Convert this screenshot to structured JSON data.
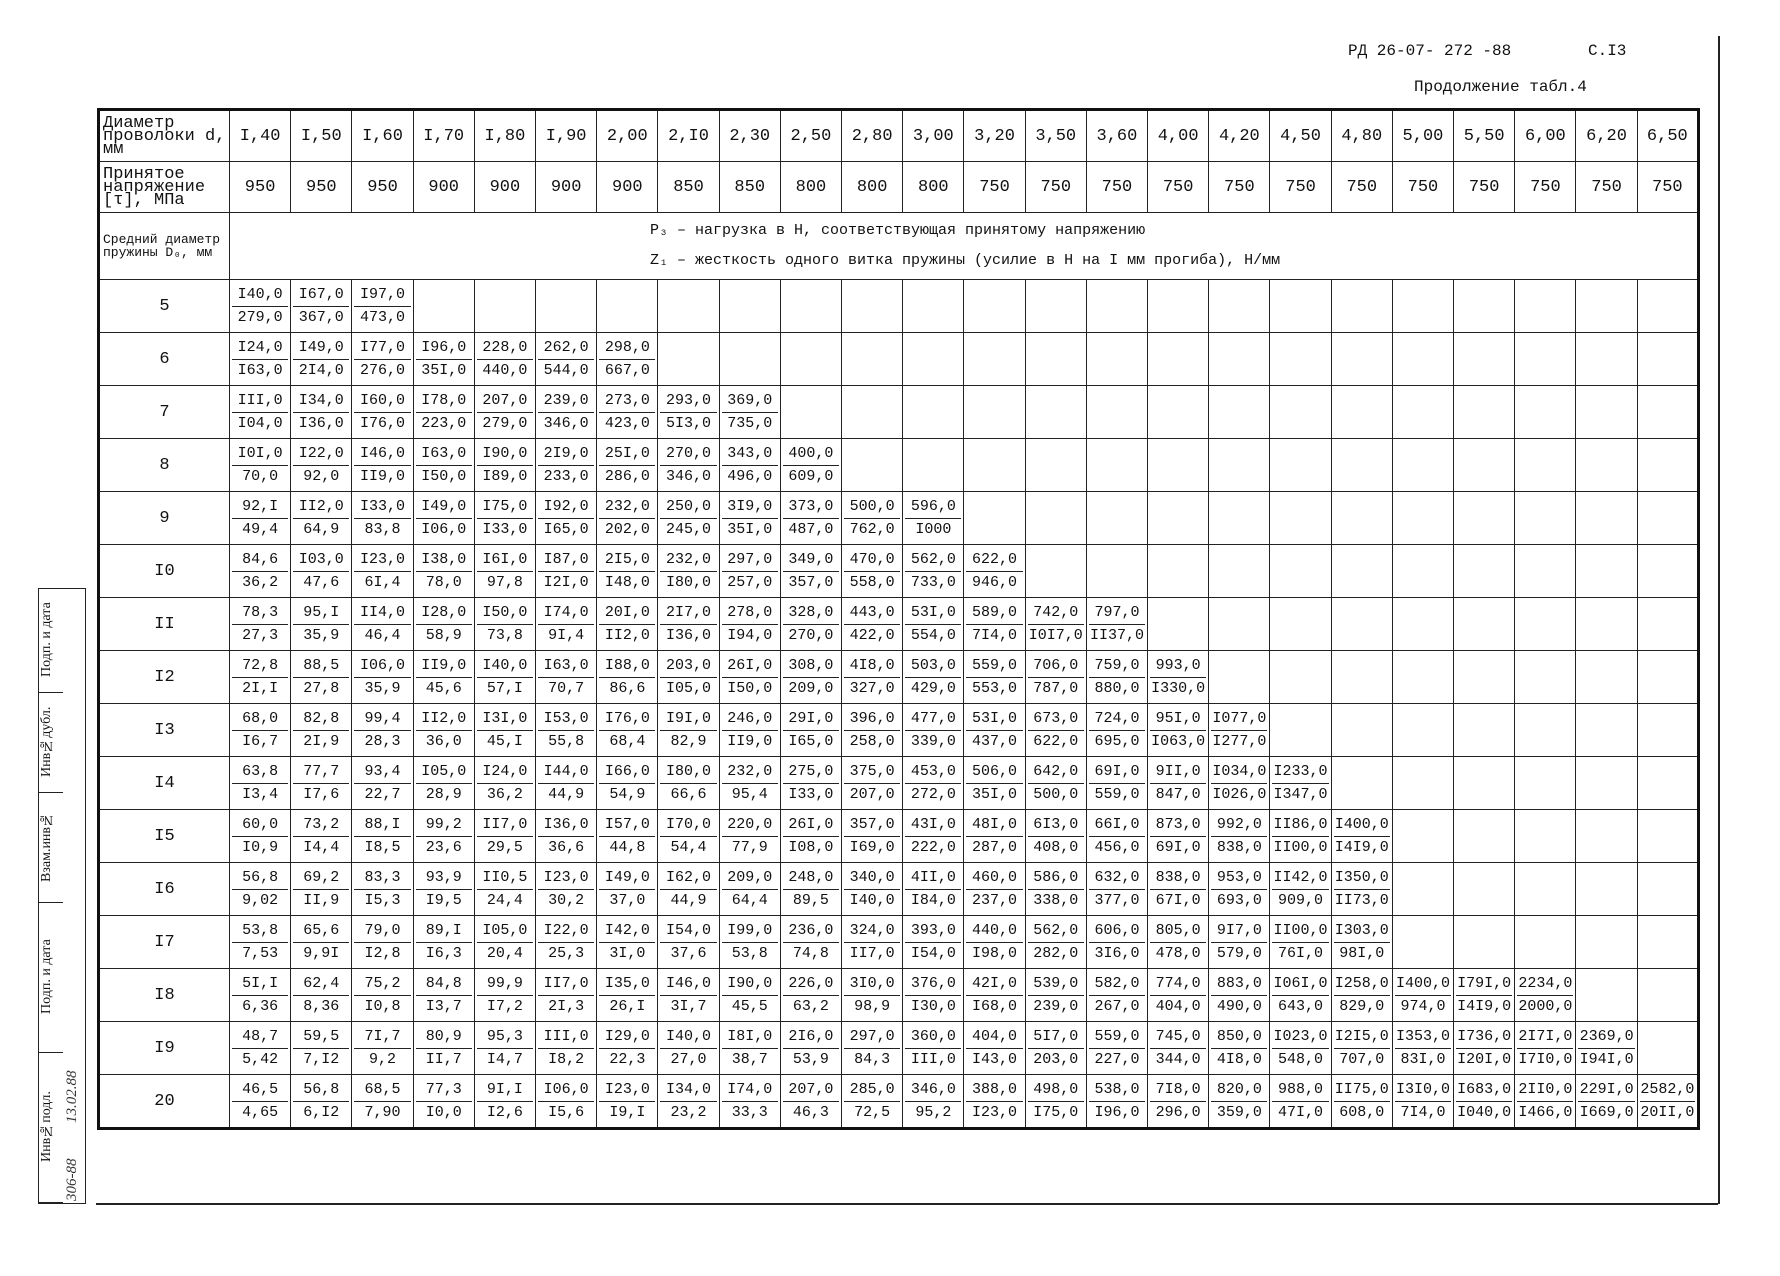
{
  "header": {
    "doc_code": "РД 26-07- 272 -88",
    "page": "С.I3",
    "continuation": "Продолжение табл.4"
  },
  "table": {
    "head_diameter": "Диаметр проволоки d, мм",
    "head_stress": "Принятое напряжение [τ], МПа",
    "head_mean_diameter": "Средний диаметр пружины D₀, мм",
    "legend_p": "P₃ – нагрузка в Н, соответствующая принятому напряжению",
    "legend_z": "Z₁ – жесткость одного витка пружины (усилие в Н на I мм прогиба), Н/мм",
    "diameters": [
      "I,40",
      "I,50",
      "I,60",
      "I,70",
      "I,80",
      "I,90",
      "2,00",
      "2,I0",
      "2,30",
      "2,50",
      "2,80",
      "3,00",
      "3,20",
      "3,50",
      "3,60",
      "4,00",
      "4,20",
      "4,50",
      "4,80",
      "5,00",
      "5,50",
      "6,00",
      "6,20",
      "6,50"
    ],
    "stresses": [
      "950",
      "950",
      "950",
      "900",
      "900",
      "900",
      "900",
      "850",
      "850",
      "800",
      "800",
      "800",
      "750",
      "750",
      "750",
      "750",
      "750",
      "750",
      "750",
      "750",
      "750",
      "750",
      "750",
      "750"
    ],
    "rows": [
      {
        "d0": "5",
        "p": [
          "I40,0",
          "I67,0",
          "I97,0"
        ],
        "z": [
          "279,0",
          "367,0",
          "473,0"
        ]
      },
      {
        "d0": "6",
        "p": [
          "I24,0",
          "I49,0",
          "I77,0",
          "I96,0",
          "228,0",
          "262,0",
          "298,0"
        ],
        "z": [
          "I63,0",
          "2I4,0",
          "276,0",
          "35I,0",
          "440,0",
          "544,0",
          "667,0"
        ]
      },
      {
        "d0": "7",
        "p": [
          "III,0",
          "I34,0",
          "I60,0",
          "I78,0",
          "207,0",
          "239,0",
          "273,0",
          "293,0",
          "369,0"
        ],
        "z": [
          "I04,0",
          "I36,0",
          "I76,0",
          "223,0",
          "279,0",
          "346,0",
          "423,0",
          "5I3,0",
          "735,0"
        ]
      },
      {
        "d0": "8",
        "p": [
          "I0I,0",
          "I22,0",
          "I46,0",
          "I63,0",
          "I90,0",
          "2I9,0",
          "25I,0",
          "270,0",
          "343,0",
          "400,0"
        ],
        "z": [
          "70,0",
          "92,0",
          "II9,0",
          "I50,0",
          "I89,0",
          "233,0",
          "286,0",
          "346,0",
          "496,0",
          "609,0"
        ]
      },
      {
        "d0": "9",
        "p": [
          "92,I",
          "II2,0",
          "I33,0",
          "I49,0",
          "I75,0",
          "I92,0",
          "232,0",
          "250,0",
          "3I9,0",
          "373,0",
          "500,0",
          "596,0"
        ],
        "z": [
          "49,4",
          "64,9",
          "83,8",
          "I06,0",
          "I33,0",
          "I65,0",
          "202,0",
          "245,0",
          "35I,0",
          "487,0",
          "762,0",
          "I000"
        ]
      },
      {
        "d0": "I0",
        "p": [
          "84,6",
          "I03,0",
          "I23,0",
          "I38,0",
          "I6I,0",
          "I87,0",
          "2I5,0",
          "232,0",
          "297,0",
          "349,0",
          "470,0",
          "562,0",
          "622,0"
        ],
        "z": [
          "36,2",
          "47,6",
          "6I,4",
          "78,0",
          "97,8",
          "I2I,0",
          "I48,0",
          "I80,0",
          "257,0",
          "357,0",
          "558,0",
          "733,0",
          "946,0"
        ]
      },
      {
        "d0": "II",
        "p": [
          "78,3",
          "95,I",
          "II4,0",
          "I28,0",
          "I50,0",
          "I74,0",
          "20I,0",
          "2I7,0",
          "278,0",
          "328,0",
          "443,0",
          "53I,0",
          "589,0",
          "742,0",
          "797,0"
        ],
        "z": [
          "27,3",
          "35,9",
          "46,4",
          "58,9",
          "73,8",
          "9I,4",
          "II2,0",
          "I36,0",
          "I94,0",
          "270,0",
          "422,0",
          "554,0",
          "7I4,0",
          "I0I7,0",
          "II37,0"
        ]
      },
      {
        "d0": "I2",
        "p": [
          "72,8",
          "88,5",
          "I06,0",
          "II9,0",
          "I40,0",
          "I63,0",
          "I88,0",
          "203,0",
          "26I,0",
          "308,0",
          "4I8,0",
          "503,0",
          "559,0",
          "706,0",
          "759,0",
          "993,0"
        ],
        "z": [
          "2I,I",
          "27,8",
          "35,9",
          "45,6",
          "57,I",
          "70,7",
          "86,6",
          "I05,0",
          "I50,0",
          "209,0",
          "327,0",
          "429,0",
          "553,0",
          "787,0",
          "880,0",
          "I330,0"
        ]
      },
      {
        "d0": "I3",
        "p": [
          "68,0",
          "82,8",
          "99,4",
          "II2,0",
          "I3I,0",
          "I53,0",
          "I76,0",
          "I9I,0",
          "246,0",
          "29I,0",
          "396,0",
          "477,0",
          "53I,0",
          "673,0",
          "724,0",
          "95I,0",
          "I077,0"
        ],
        "z": [
          "I6,7",
          "2I,9",
          "28,3",
          "36,0",
          "45,I",
          "55,8",
          "68,4",
          "82,9",
          "II9,0",
          "I65,0",
          "258,0",
          "339,0",
          "437,0",
          "622,0",
          "695,0",
          "I063,0",
          "I277,0"
        ]
      },
      {
        "d0": "I4",
        "p": [
          "63,8",
          "77,7",
          "93,4",
          "I05,0",
          "I24,0",
          "I44,0",
          "I66,0",
          "I80,0",
          "232,0",
          "275,0",
          "375,0",
          "453,0",
          "506,0",
          "642,0",
          "69I,0",
          "9II,0",
          "I034,0",
          "I233,0"
        ],
        "z": [
          "I3,4",
          "I7,6",
          "22,7",
          "28,9",
          "36,2",
          "44,9",
          "54,9",
          "66,6",
          "95,4",
          "I33,0",
          "207,0",
          "272,0",
          "35I,0",
          "500,0",
          "559,0",
          "847,0",
          "I026,0",
          "I347,0"
        ]
      },
      {
        "d0": "I5",
        "p": [
          "60,0",
          "73,2",
          "88,I",
          "99,2",
          "II7,0",
          "I36,0",
          "I57,0",
          "I70,0",
          "220,0",
          "26I,0",
          "357,0",
          "43I,0",
          "48I,0",
          "6I3,0",
          "66I,0",
          "873,0",
          "992,0",
          "II86,0",
          "I400,0"
        ],
        "z": [
          "I0,9",
          "I4,4",
          "I8,5",
          "23,6",
          "29,5",
          "36,6",
          "44,8",
          "54,4",
          "77,9",
          "I08,0",
          "I69,0",
          "222,0",
          "287,0",
          "408,0",
          "456,0",
          "69I,0",
          "838,0",
          "II00,0",
          "I4I9,0"
        ]
      },
      {
        "d0": "I6",
        "p": [
          "56,8",
          "69,2",
          "83,3",
          "93,9",
          "II0,5",
          "I23,0",
          "I49,0",
          "I62,0",
          "209,0",
          "248,0",
          "340,0",
          "4II,0",
          "460,0",
          "586,0",
          "632,0",
          "838,0",
          "953,0",
          "II42,0",
          "I350,0"
        ],
        "z": [
          "9,02",
          "II,9",
          "I5,3",
          "I9,5",
          "24,4",
          "30,2",
          "37,0",
          "44,9",
          "64,4",
          "89,5",
          "I40,0",
          "I84,0",
          "237,0",
          "338,0",
          "377,0",
          "67I,0",
          "693,0",
          "909,0",
          "II73,0"
        ]
      },
      {
        "d0": "I7",
        "p": [
          "53,8",
          "65,6",
          "79,0",
          "89,I",
          "I05,0",
          "I22,0",
          "I42,0",
          "I54,0",
          "I99,0",
          "236,0",
          "324,0",
          "393,0",
          "440,0",
          "562,0",
          "606,0",
          "805,0",
          "9I7,0",
          "II00,0",
          "I303,0"
        ],
        "z": [
          "7,53",
          "9,9I",
          "I2,8",
          "I6,3",
          "20,4",
          "25,3",
          "3I,0",
          "37,6",
          "53,8",
          "74,8",
          "II7,0",
          "I54,0",
          "I98,0",
          "282,0",
          "3I6,0",
          "478,0",
          "579,0",
          "76I,0",
          "98I,0"
        ]
      },
      {
        "d0": "I8",
        "p": [
          "5I,I",
          "62,4",
          "75,2",
          "84,8",
          "99,9",
          "II7,0",
          "I35,0",
          "I46,0",
          "I90,0",
          "226,0",
          "3I0,0",
          "376,0",
          "42I,0",
          "539,0",
          "582,0",
          "774,0",
          "883,0",
          "I06I,0",
          "I258,0",
          "I400,0",
          "I79I,0",
          "2234,0"
        ],
        "z": [
          "6,36",
          "8,36",
          "I0,8",
          "I3,7",
          "I7,2",
          "2I,3",
          "26,I",
          "3I,7",
          "45,5",
          "63,2",
          "98,9",
          "I30,0",
          "I68,0",
          "239,0",
          "267,0",
          "404,0",
          "490,0",
          "643,0",
          "829,0",
          "974,0",
          "I4I9,0",
          "2000,0"
        ]
      },
      {
        "d0": "I9",
        "p": [
          "48,7",
          "59,5",
          "7I,7",
          "80,9",
          "95,3",
          "III,0",
          "I29,0",
          "I40,0",
          "I8I,0",
          "2I6,0",
          "297,0",
          "360,0",
          "404,0",
          "5I7,0",
          "559,0",
          "745,0",
          "850,0",
          "I023,0",
          "I2I5,0",
          "I353,0",
          "I736,0",
          "2I7I,0",
          "2369,0"
        ],
        "z": [
          "5,42",
          "7,I2",
          "9,2",
          "II,7",
          "I4,7",
          "I8,2",
          "22,3",
          "27,0",
          "38,7",
          "53,9",
          "84,3",
          "III,0",
          "I43,0",
          "203,0",
          "227,0",
          "344,0",
          "4I8,0",
          "548,0",
          "707,0",
          "83I,0",
          "I20I,0",
          "I7I0,0",
          "I94I,0"
        ]
      },
      {
        "d0": "20",
        "p": [
          "46,5",
          "56,8",
          "68,5",
          "77,3",
          "9I,I",
          "I06,0",
          "I23,0",
          "I34,0",
          "I74,0",
          "207,0",
          "285,0",
          "346,0",
          "388,0",
          "498,0",
          "538,0",
          "7I8,0",
          "820,0",
          "988,0",
          "II75,0",
          "I3I0,0",
          "I683,0",
          "2II0,0",
          "229I,0",
          "2582,0"
        ],
        "z": [
          "4,65",
          "6,I2",
          "7,90",
          "I0,0",
          "I2,6",
          "I5,6",
          "I9,I",
          "23,2",
          "33,3",
          "46,3",
          "72,5",
          "95,2",
          "I23,0",
          "I75,0",
          "I96,0",
          "296,0",
          "359,0",
          "47I,0",
          "608,0",
          "7I4,0",
          "I040,0",
          "I466,0",
          "I669,0",
          "20II,0"
        ]
      }
    ]
  },
  "stamp": {
    "fields": [
      "Инв№подл.",
      "Подп. и дата",
      "Взам.инв№",
      "Инв№дубл.",
      "Подп. и дата"
    ],
    "inv_number": "306-88",
    "date": "13.02.88"
  }
}
